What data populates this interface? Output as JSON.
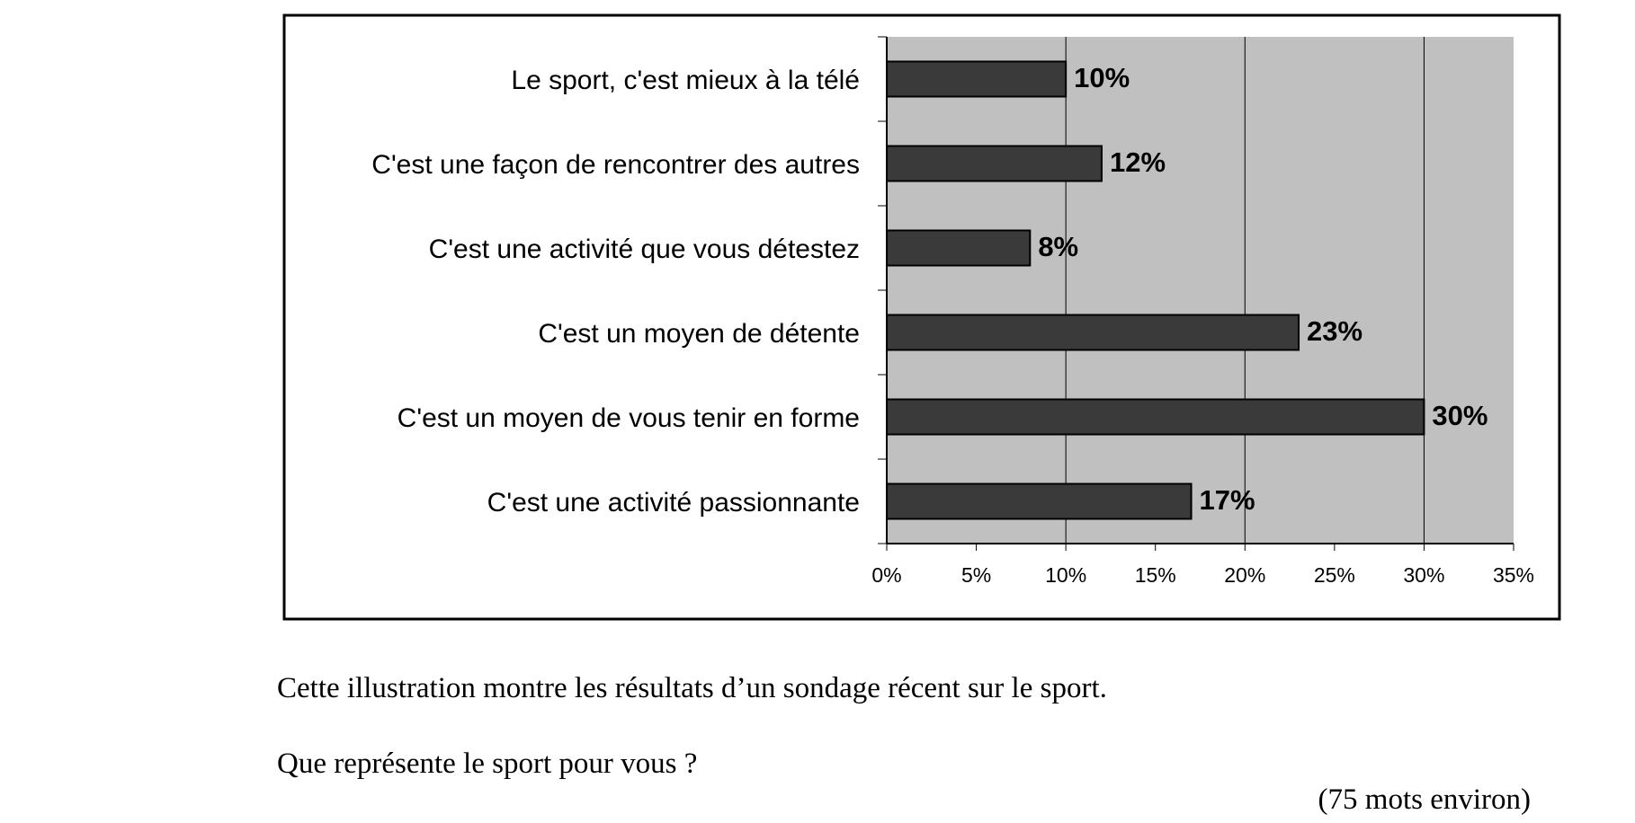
{
  "chart_data": {
    "type": "bar",
    "orientation": "horizontal",
    "categories": [
      "Le sport, c'est mieux à la télé",
      "C'est une façon de rencontrer des autres",
      "C'est une activité que vous détestez",
      "C'est un moyen de détente",
      "C'est un moyen de vous tenir en forme",
      "C'est une activité passionnante"
    ],
    "values": [
      10,
      12,
      8,
      23,
      30,
      17
    ],
    "value_labels": [
      "10%",
      "12%",
      "8%",
      "23%",
      "30%",
      "17%"
    ],
    "xlim": [
      0,
      35
    ],
    "x_ticks": [
      0,
      5,
      10,
      15,
      20,
      25,
      30,
      35
    ],
    "x_tick_labels": [
      "0%",
      "5%",
      "10%",
      "15%",
      "20%",
      "25%",
      "30%",
      "35%"
    ],
    "gridlines_at": [
      10,
      20,
      30
    ],
    "title": "",
    "xlabel": "",
    "ylabel": "",
    "legend": "none",
    "colors": {
      "bar_fill": "#3a3a3a",
      "bar_stroke": "#000000",
      "plot_background": "#c0c0c0",
      "gridline": "#000000",
      "frame": "#000000"
    }
  },
  "text": {
    "caption": "Cette illustration montre les résultats d’un sondage récent sur le sport.",
    "question": "Que représente le sport pour vous ?",
    "word_count": "(75 mots environ)"
  }
}
